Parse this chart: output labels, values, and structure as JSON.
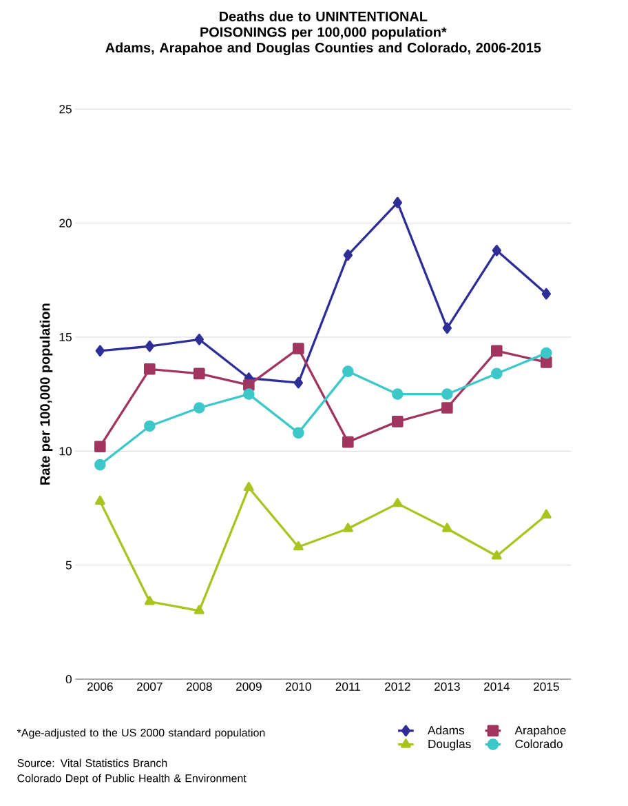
{
  "chart_data": {
    "type": "line",
    "title": "Deaths due to UNINTENTIONAL POISONINGS per 100,000 population*",
    "subtitle": "Adams, Arapahoe and Douglas Counties and Colorado, 2006-2015",
    "ylabel": "Rate per 100,000 population",
    "categories": [
      "2006",
      "2007",
      "2008",
      "2009",
      "2010",
      "2011",
      "2012",
      "2013",
      "2014",
      "2015"
    ],
    "series": [
      {
        "name": "Adams",
        "color": "#2e2e96",
        "marker": "diamond",
        "values": [
          14.4,
          14.6,
          14.9,
          13.2,
          13.0,
          18.6,
          20.9,
          15.4,
          18.8,
          16.9
        ]
      },
      {
        "name": "Arapahoe",
        "color": "#a0365f",
        "marker": "square",
        "values": [
          10.2,
          13.6,
          13.4,
          12.9,
          14.5,
          10.4,
          11.3,
          11.9,
          14.4,
          13.9
        ]
      },
      {
        "name": "Douglas",
        "color": "#a8c41e",
        "marker": "triangle",
        "values": [
          7.8,
          3.4,
          3.0,
          8.4,
          5.8,
          6.6,
          7.7,
          6.6,
          5.4,
          7.2
        ]
      },
      {
        "name": "Colorado",
        "color": "#3cc8c8",
        "marker": "circle",
        "values": [
          9.4,
          11.1,
          11.9,
          12.5,
          10.8,
          13.5,
          12.5,
          12.5,
          13.4,
          14.3
        ]
      }
    ],
    "ylim": [
      0,
      25
    ],
    "yticks": [
      0,
      5,
      10,
      15,
      20,
      25
    ],
    "grid": "y",
    "legend": "bottom right",
    "line_style": "solid",
    "annotations": [
      "*Age-adjusted to the US 2000 standard population",
      "Source: Vital Statistics Branch",
      "Colorado Dept of Public Health & Environment"
    ]
  }
}
